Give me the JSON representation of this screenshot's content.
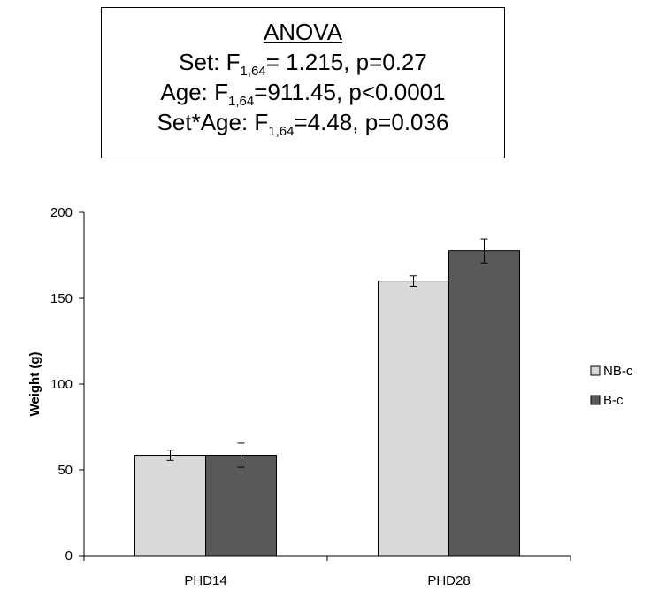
{
  "anova": {
    "title": "ANOVA",
    "lines": [
      {
        "prefix": "Set: F",
        "sub": "1,64",
        "suffix": "= 1.215, p=0.27"
      },
      {
        "prefix": "Age: F",
        "sub": "1,64",
        "suffix": "=911.45, p<0.0001"
      },
      {
        "prefix": "Set*Age: F",
        "sub": "1,64",
        "suffix": "=4.48, p=0.036"
      }
    ]
  },
  "chart_data": {
    "type": "bar",
    "title": "",
    "xlabel": "",
    "ylabel": "Weight (g)",
    "categories": [
      "PHD14",
      "PHD28"
    ],
    "ylim": [
      0,
      200
    ],
    "yticks": [
      0,
      50,
      100,
      150,
      200
    ],
    "grid": false,
    "legend": "right",
    "series": [
      {
        "name": "NB-c",
        "color": "#d9d9d9",
        "values": [
          58.5,
          160
        ],
        "errors": [
          3,
          3
        ]
      },
      {
        "name": "B-c",
        "color": "#595959",
        "values": [
          58.5,
          177.5
        ],
        "errors": [
          7,
          7
        ]
      }
    ]
  }
}
